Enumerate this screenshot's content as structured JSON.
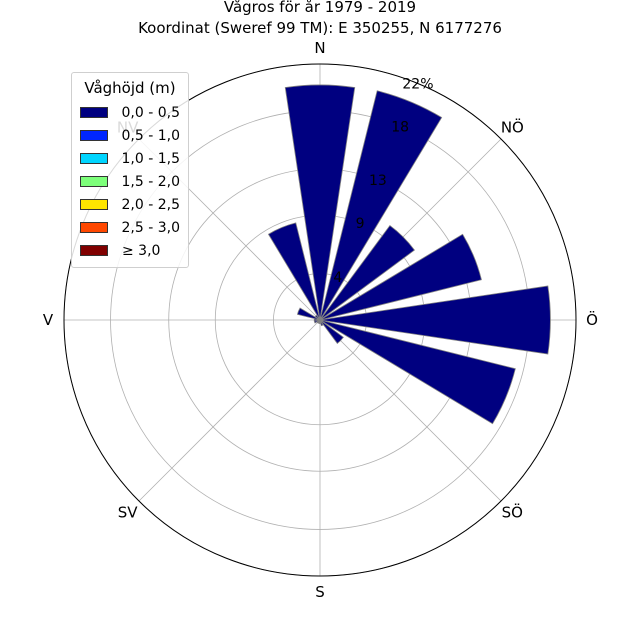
{
  "title_line1": "Vågros för år 1979 - 2019",
  "title_line2": "Koordinat (Sweref 99 TM): E 350255, N 6177276",
  "chart_data": {
    "type": "windrose",
    "unit": "%",
    "rmax": 22,
    "radial_ticks": [
      4,
      9,
      13,
      18,
      22
    ],
    "radial_tick_labels": [
      "4",
      "9",
      "13",
      "18",
      "22%"
    ],
    "grid": true,
    "directions": [
      {
        "label": "N",
        "angle": 0
      },
      {
        "label": "NÖ",
        "angle": 45
      },
      {
        "label": "Ö",
        "angle": 90
      },
      {
        "label": "SÖ",
        "angle": 135
      },
      {
        "label": "S",
        "angle": 180
      },
      {
        "label": "SV",
        "angle": 225
      },
      {
        "label": "V",
        "angle": 270
      },
      {
        "label": "NV",
        "angle": 315
      }
    ],
    "sectors_deg": [
      0,
      22.5,
      45,
      67.5,
      90,
      112.5,
      135,
      157.5,
      180,
      202.5,
      225,
      247.5,
      270,
      292.5,
      315,
      337.5
    ],
    "series": [
      {
        "name": "0,0 - 0,5",
        "color": "#000080",
        "values": [
          20.2,
          20.3,
          10.1,
          14.3,
          19.8,
          17.3,
          2.5,
          0.5,
          0.3,
          0.3,
          0.3,
          0.5,
          0.5,
          2.0,
          0.5,
          8.6
        ]
      },
      {
        "name": "0,5 - 1,0",
        "color": "#0026ff",
        "values": [
          0,
          0,
          0,
          0,
          0,
          0,
          0,
          0,
          0,
          0,
          0,
          0,
          0,
          0,
          0,
          0
        ]
      },
      {
        "name": "1,0 - 1,5",
        "color": "#00d5ff",
        "values": [
          0,
          0,
          0,
          0,
          0,
          0,
          0,
          0,
          0,
          0,
          0,
          0,
          0,
          0,
          0,
          0
        ]
      },
      {
        "name": "1,5 - 2,0",
        "color": "#7dff7a",
        "values": [
          0,
          0,
          0,
          0,
          0,
          0,
          0,
          0,
          0,
          0,
          0,
          0,
          0,
          0,
          0,
          0
        ]
      },
      {
        "name": "2,0 - 2,5",
        "color": "#ffe600",
        "values": [
          0,
          0,
          0,
          0,
          0,
          0,
          0,
          0,
          0,
          0,
          0,
          0,
          0,
          0,
          0,
          0
        ]
      },
      {
        "name": "2,5 - 3,0",
        "color": "#ff4800",
        "values": [
          0,
          0,
          0,
          0,
          0,
          0,
          0,
          0,
          0,
          0,
          0,
          0,
          0,
          0,
          0,
          0
        ]
      },
      {
        "name": "≥ 3,0",
        "color": "#800000",
        "values": [
          0,
          0,
          0,
          0,
          0,
          0,
          0,
          0,
          0,
          0,
          0,
          0,
          0,
          0,
          0,
          0
        ]
      }
    ]
  },
  "legend": {
    "title": "Våghöjd (m)",
    "placement": "top-left",
    "items": [
      {
        "label": "0,0 - 0,5",
        "color": "#000080"
      },
      {
        "label": "0,5 - 1,0",
        "color": "#0026ff"
      },
      {
        "label": "1,0 - 1,5",
        "color": "#00d5ff"
      },
      {
        "label": "1,5 - 2,0",
        "color": "#7dff7a"
      },
      {
        "label": "2,0 - 2,5",
        "color": "#ffe600"
      },
      {
        "label": "2,5 - 3,0",
        "color": "#ff4800"
      },
      {
        "label": "≥ 3,0",
        "color": "#800000"
      }
    ]
  }
}
